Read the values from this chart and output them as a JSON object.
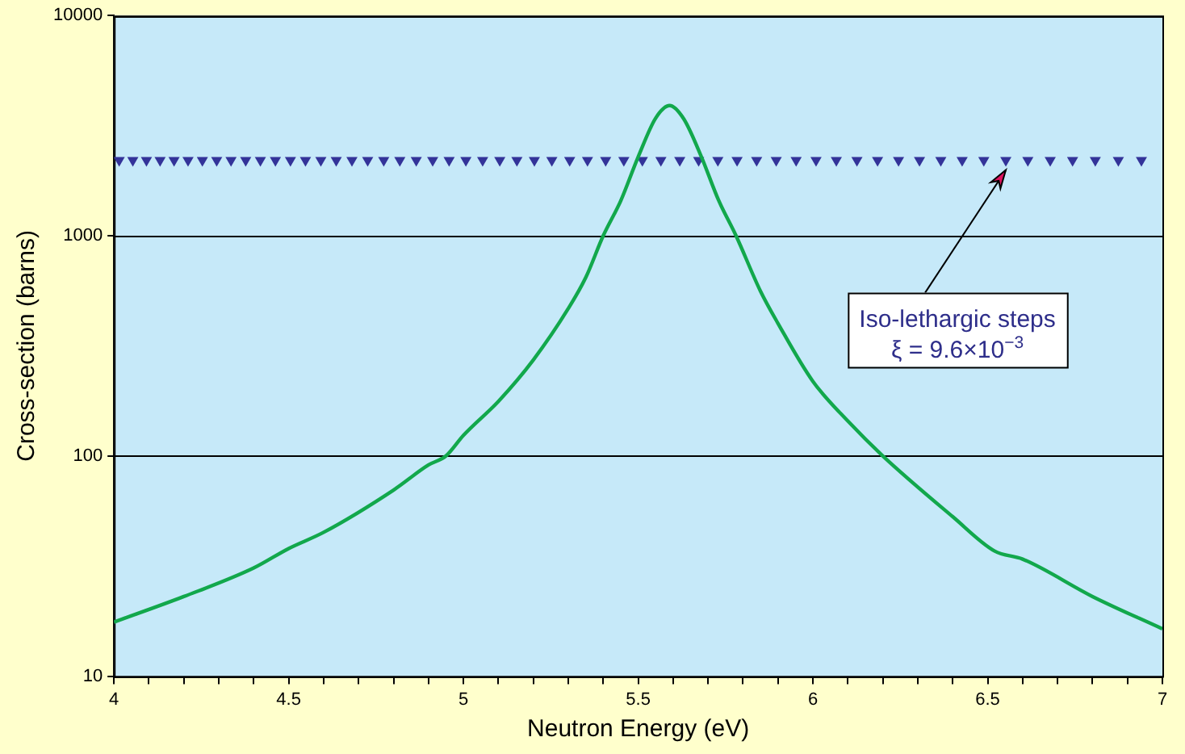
{
  "chart_data": {
    "type": "line",
    "xlabel": "Neutron Energy (eV)",
    "ylabel": "Cross-section (barns)",
    "xlim": [
      4,
      7
    ],
    "xticks": [
      4,
      {
        "value": 4.1,
        "label": null
      },
      {
        "value": 4.2,
        "label": null
      },
      {
        "value": 4.3,
        "label": null
      },
      {
        "value": 4.4,
        "label": null
      },
      4.5,
      {
        "value": 4.6,
        "label": null
      },
      {
        "value": 4.7,
        "label": null
      },
      {
        "value": 4.8,
        "label": null
      },
      {
        "value": 4.9,
        "label": null
      },
      5,
      {
        "value": 5.1,
        "label": null
      },
      {
        "value": 5.2,
        "label": null
      },
      {
        "value": 5.3,
        "label": null
      },
      {
        "value": 5.4,
        "label": null
      },
      5.5,
      {
        "value": 5.6,
        "label": null
      },
      {
        "value": 5.7,
        "label": null
      },
      {
        "value": 5.8,
        "label": null
      },
      {
        "value": 5.9,
        "label": null
      },
      6,
      {
        "value": 6.1,
        "label": null
      },
      {
        "value": 6.2,
        "label": null
      },
      {
        "value": 6.3,
        "label": null
      },
      {
        "value": 6.4,
        "label": null
      },
      6.5,
      {
        "value": 6.6,
        "label": null
      },
      {
        "value": 6.7,
        "label": null
      },
      {
        "value": 6.8,
        "label": null
      },
      {
        "value": 6.9,
        "label": null
      },
      7
    ],
    "ylim": [
      10,
      10000
    ],
    "yticks": [
      10,
      100,
      1000,
      10000
    ],
    "log": "y",
    "grid": "y",
    "legend": false,
    "series": [
      {
        "type": "line",
        "color": "#12a84c",
        "marker": "none",
        "line_style": "solid",
        "x": [
          4.0,
          4.2,
          4.4,
          4.5,
          4.6,
          4.8,
          4.9,
          4.95,
          5.0,
          5.1,
          5.2,
          5.3,
          5.35,
          5.4,
          5.45,
          5.5,
          5.55,
          5.59,
          5.63,
          5.68,
          5.73,
          5.78,
          5.85,
          5.9,
          6.0,
          6.1,
          6.2,
          6.4,
          6.52,
          6.6,
          6.8,
          7.0
        ],
        "values": [
          17.6,
          23,
          31,
          38,
          45,
          70,
          91,
          100,
          124,
          177,
          273,
          467,
          646,
          1000,
          1440,
          2280,
          3420,
          3900,
          3400,
          2300,
          1450,
          1000,
          560,
          400,
          218,
          144,
          100,
          53,
          37,
          34,
          23,
          16.4
        ]
      },
      {
        "type": "scatter",
        "color": "#333399",
        "marker": "triangle",
        "x": [
          4.015,
          4.054,
          4.093,
          4.132,
          4.172,
          4.212,
          4.253,
          4.294,
          4.335,
          4.377,
          4.419,
          4.462,
          4.505,
          4.548,
          4.592,
          4.636,
          4.681,
          4.726,
          4.772,
          4.818,
          4.865,
          4.912,
          4.959,
          5.007,
          5.055,
          5.104,
          5.153,
          5.203,
          5.253,
          5.304,
          5.355,
          5.407,
          5.459,
          5.512,
          5.565,
          5.619,
          5.673,
          5.728,
          5.783,
          5.839,
          5.895,
          5.952,
          6.009,
          6.067,
          6.126,
          6.185,
          6.245,
          6.305,
          6.366,
          6.427,
          6.489,
          6.552,
          6.615,
          6.679,
          6.743,
          6.808,
          6.874,
          6.94
        ],
        "values": [
          2200,
          2200,
          2200,
          2200,
          2200,
          2200,
          2200,
          2200,
          2200,
          2200,
          2200,
          2200,
          2200,
          2200,
          2200,
          2200,
          2200,
          2200,
          2200,
          2200,
          2200,
          2200,
          2200,
          2200,
          2200,
          2200,
          2200,
          2200,
          2200,
          2200,
          2200,
          2200,
          2200,
          2200,
          2200,
          2200,
          2200,
          2200,
          2200,
          2200,
          2200,
          2200,
          2200,
          2200,
          2200,
          2200,
          2200,
          2200,
          2200,
          2200,
          2200,
          2200,
          2200,
          2200,
          2200,
          2200,
          2200,
          2200
        ]
      }
    ],
    "annotations": [
      {
        "text": "Iso-lethargic steps\nξ = 9.6×10$^{−3}$",
        "x": 6.552,
        "y": 2200
      }
    ]
  }
}
